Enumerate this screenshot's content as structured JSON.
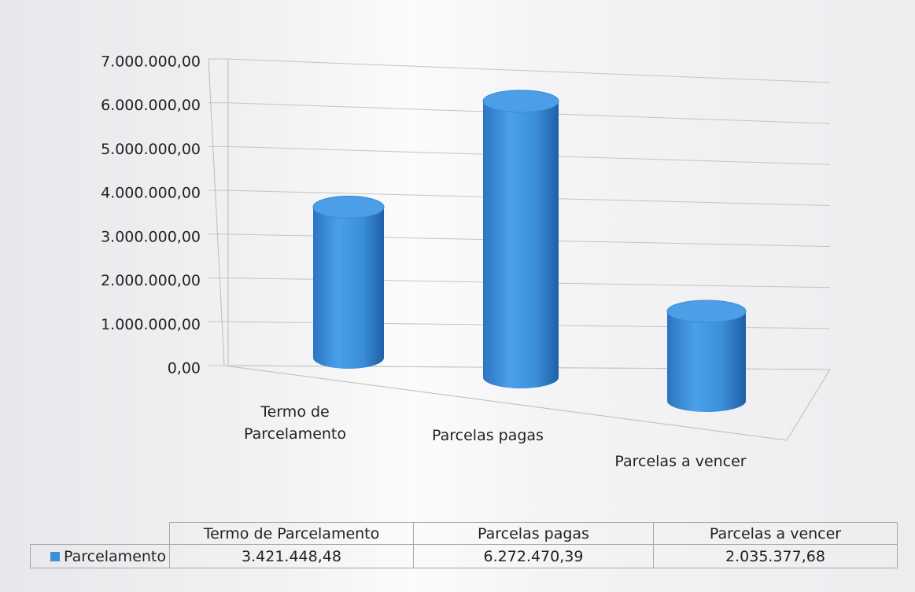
{
  "chart_data": {
    "type": "bar3d",
    "categories": [
      "Termo de Parcelamento",
      "Parcelas pagas",
      "Parcelas a vencer"
    ],
    "series": [
      {
        "name": "Parcelamento",
        "color": "#3a8fd8",
        "values": [
          3421448.48,
          6272470.39,
          2035377.68
        ],
        "value_labels": [
          "3.421.448,48",
          "6.272.470,39",
          "2.035.377,68"
        ]
      }
    ],
    "ylim": [
      0,
      7000000
    ],
    "yticks": [
      {
        "value": 0,
        "label": "0,00"
      },
      {
        "value": 1000000,
        "label": "1.000.000,00"
      },
      {
        "value": 2000000,
        "label": "2.000.000,00"
      },
      {
        "value": 3000000,
        "label": "3.000.000,00"
      },
      {
        "value": 4000000,
        "label": "4.000.000,00"
      },
      {
        "value": 5000000,
        "label": "5.000.000,00"
      },
      {
        "value": 6000000,
        "label": "6.000.000,00"
      },
      {
        "value": 7000000,
        "label": "7.000.000,00"
      }
    ],
    "grid": true,
    "legend": "bottom"
  }
}
